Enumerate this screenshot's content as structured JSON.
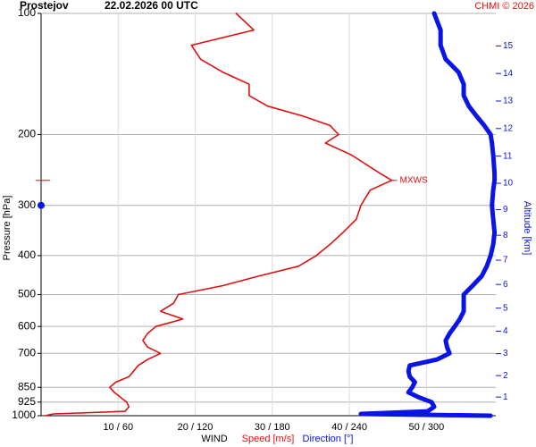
{
  "chart_data": {
    "type": "profile",
    "station": "Prostejov",
    "title": "22.02.2026 00 UTC",
    "credit": "CHMI © 2026",
    "ylabel": "Pressure [hPa]",
    "y2label": "Altitude [km]",
    "xlabel": "WIND",
    "ylim": [
      1000,
      100
    ],
    "log_y": true,
    "yticks": [
      100,
      200,
      300,
      400,
      500,
      600,
      700,
      850,
      925,
      1000
    ],
    "xlim": [
      0,
      59
    ],
    "xticks": [
      {
        "value": 10,
        "label": "10 / 60"
      },
      {
        "value": 20,
        "label": "20 / 120"
      },
      {
        "value": 30,
        "label": "30 / 180"
      },
      {
        "value": 40,
        "label": "40 / 240"
      },
      {
        "value": 50,
        "label": "50 / 300"
      }
    ],
    "x2lim": [
      0,
      354
    ],
    "y2ticks": [
      1,
      2,
      3,
      4,
      5,
      6,
      7,
      8,
      9,
      10,
      11,
      12,
      13,
      14,
      15
    ],
    "grid": true,
    "y": [
      1000,
      990,
      975,
      950,
      925,
      900,
      875,
      850,
      825,
      800,
      775,
      750,
      725,
      700,
      675,
      650,
      625,
      600,
      575,
      550,
      525,
      500,
      475,
      450,
      425,
      400,
      375,
      350,
      325,
      300,
      275,
      260,
      250,
      225,
      210,
      200,
      190,
      180,
      170,
      160,
      150,
      140,
      130,
      120,
      110,
      100
    ],
    "series": [
      {
        "name": "Speed [m/s]",
        "color": "#e01010",
        "values": [
          0.5,
          1.6,
          10.9,
          11.4,
          11.1,
          10.3,
          9.5,
          8.9,
          9.7,
          11.4,
          12,
          12.6,
          13.8,
          15.5,
          13.8,
          13.2,
          13.8,
          14.9,
          18.4,
          15.5,
          17.2,
          17.8,
          23.6,
          28.2,
          33.4,
          35.7,
          37.5,
          39.2,
          40.9,
          41.5,
          42.7,
          45.5,
          44,
          40.3,
          36.9,
          38.6,
          37.5,
          34,
          29.4,
          27,
          27,
          23.6,
          20.7,
          19.5,
          27.6,
          25.3
        ]
      },
      {
        "name": "Direction [°]",
        "color": "#0a14e6",
        "axis": "x2",
        "values": [
          350,
          249,
          301,
          306,
          304,
          294,
          286,
          289,
          291,
          287,
          286,
          287,
          308,
          318,
          316,
          315,
          318,
          322,
          326,
          329,
          329,
          329,
          336,
          343,
          347,
          350,
          352,
          353,
          352,
          351,
          352,
          353,
          353,
          352,
          351,
          350,
          345,
          339,
          333,
          329,
          329,
          325,
          315,
          311,
          311,
          306
        ]
      }
    ],
    "max_wind": {
      "label": "MXWS",
      "pressure": 260,
      "speed": 45.5
    },
    "tropopause": {
      "pressure": 300
    }
  }
}
